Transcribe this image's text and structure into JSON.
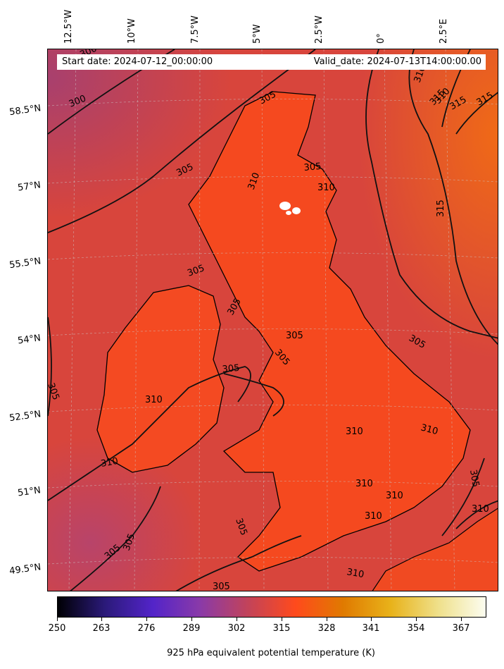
{
  "header": {
    "start_date": "Start date: 2024-07-12_00:00:00",
    "valid_date": "Valid_date: 2024-07-13T14:00:00.00"
  },
  "axes": {
    "longitude_labels": [
      "12.5°W",
      "10°W",
      "7.5°W",
      "5°W",
      "2.5°W",
      "0°",
      "2.5°E"
    ],
    "latitude_labels": [
      "58.5°N",
      "57°N",
      "55.5°N",
      "54°N",
      "52.5°N",
      "51°N",
      "49.5°N"
    ]
  },
  "contour_labels": [
    "300",
    "300",
    "305",
    "305",
    "310",
    "305",
    "310",
    "315",
    "310",
    "315",
    "315",
    "315",
    "305",
    "305",
    "305",
    "305",
    "305",
    "305",
    "305",
    "310",
    "310",
    "310",
    "310",
    "310",
    "310",
    "310",
    "310",
    "305",
    "310",
    "305",
    "305",
    "305",
    "310",
    "305"
  ],
  "colorbar": {
    "ticks": [
      "250",
      "263",
      "276",
      "289",
      "302",
      "315",
      "328",
      "341",
      "354",
      "367"
    ],
    "label": "925 hPa equivalent potential temperature (K)",
    "colors": [
      "#000004",
      "#2b1a7a",
      "#5324c9",
      "#8a3aa8",
      "#c2435a",
      "#ff4a1c",
      "#e07a00",
      "#e8b21a",
      "#efe08a",
      "#fcfdf0"
    ]
  },
  "map": {
    "field_colors": {
      "cool": "#b0406a",
      "mid": "#d9453a",
      "warm": "#f8531d",
      "hot": "#f46a1a"
    }
  }
}
